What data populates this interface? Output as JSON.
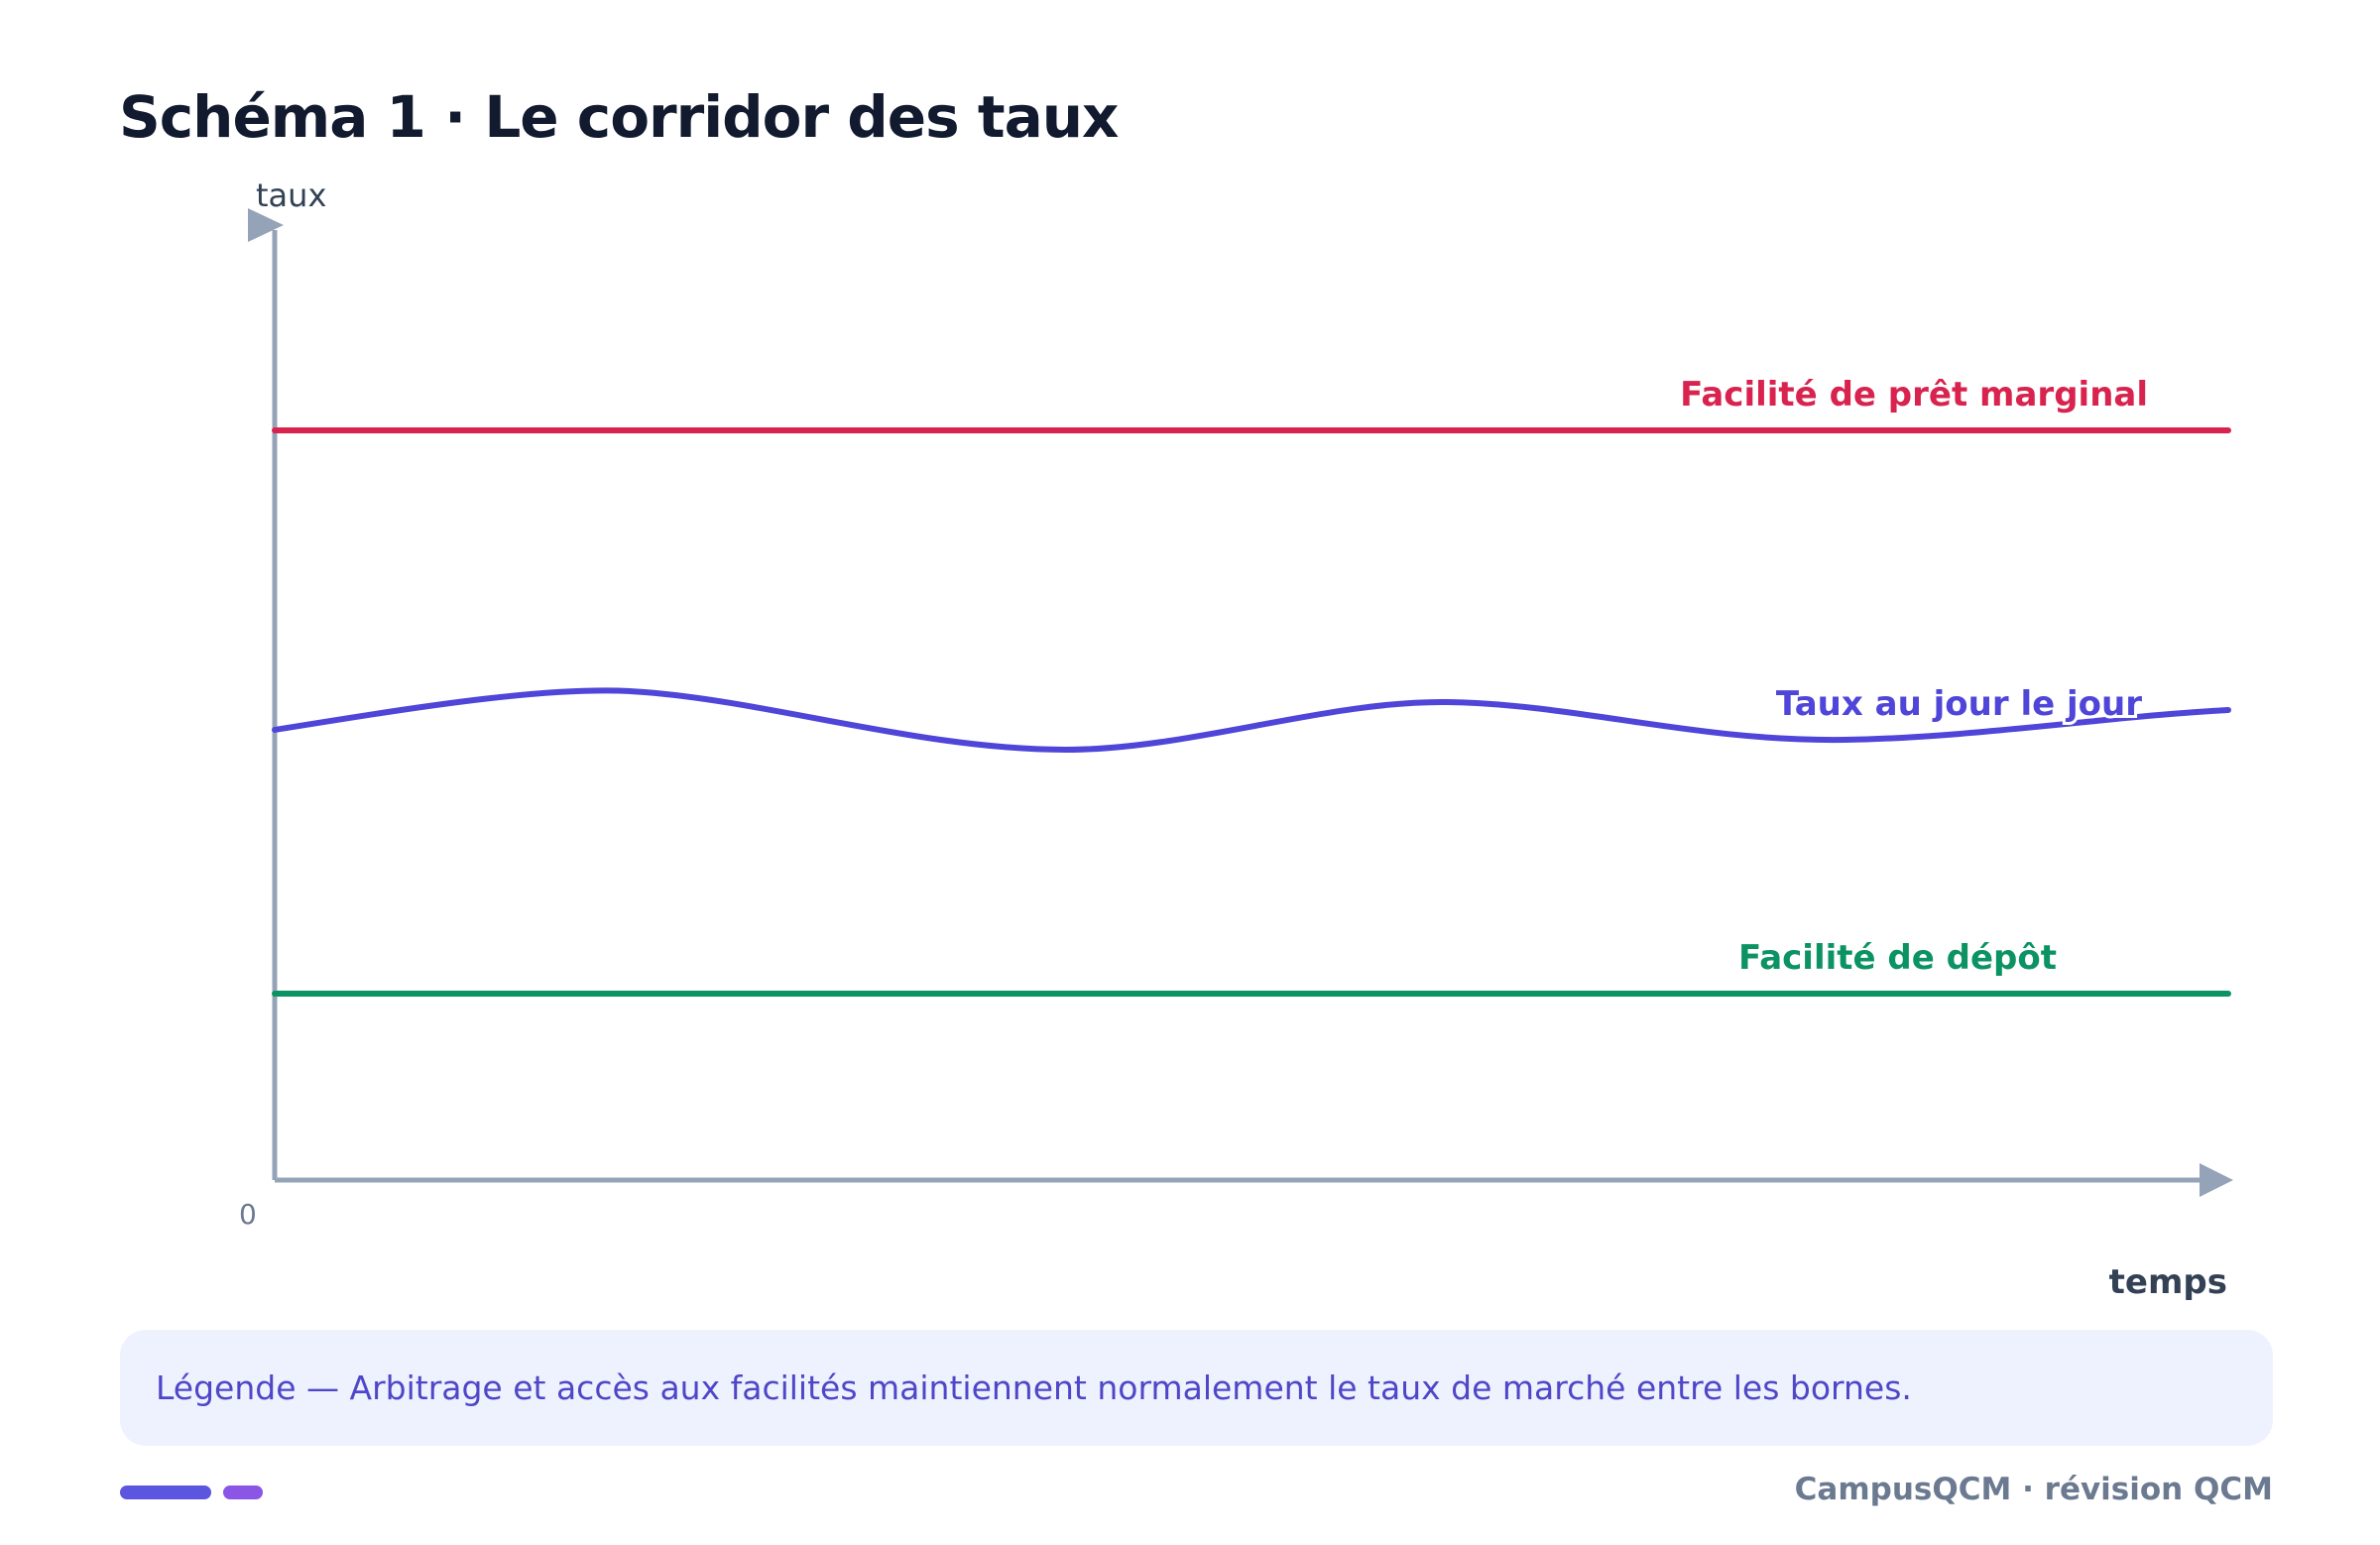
{
  "title": "Schéma 1 · Le corridor des taux",
  "axes": {
    "y_label": "taux",
    "x_label": "temps",
    "origin_label": "0"
  },
  "lines": {
    "marginal_lending": {
      "label": "Facilité de prêt marginal",
      "color": "#d8234e"
    },
    "overnight_rate": {
      "label": "Taux au jour le jour",
      "color": "#4f46d9"
    },
    "deposit_facility": {
      "label": "Facilité de dépôt",
      "color": "#0b9363"
    }
  },
  "axis_color": "#94a3b8",
  "legend": {
    "text": "Légende — Arbitrage et accès aux facilités maintiennent normalement le taux de marché entre les bornes."
  },
  "footer": {
    "brand": "CampusQCM · révision QCM"
  }
}
